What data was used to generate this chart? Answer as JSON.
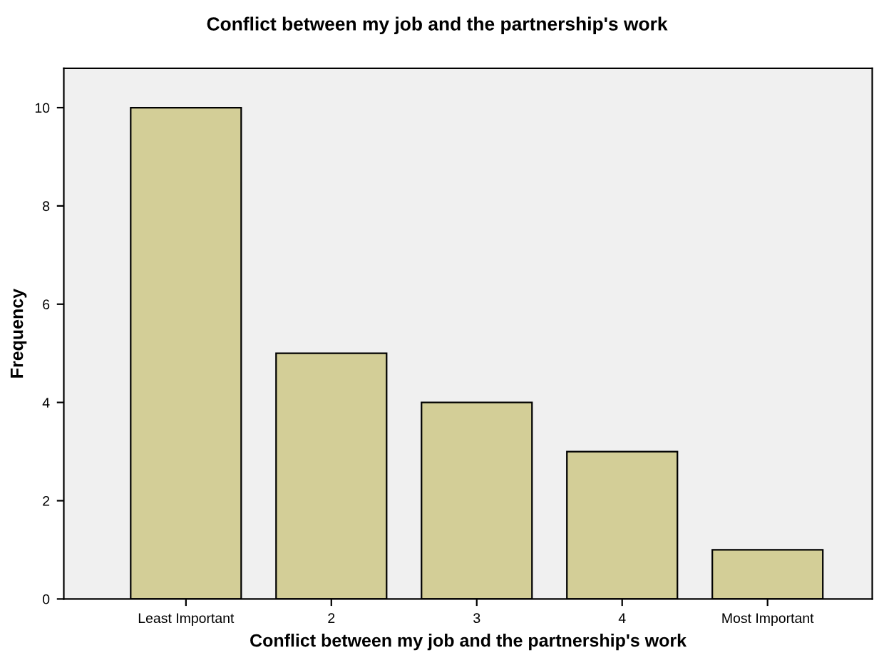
{
  "chart_data": {
    "type": "bar",
    "title": "Conflict between my job and the partnership's work",
    "xlabel": "Conflict between my job and the partnership's work",
    "ylabel": "Frequency",
    "categories": [
      "Least Important",
      "2",
      "3",
      "4",
      "Most Important"
    ],
    "values": [
      10,
      5,
      4,
      3,
      1
    ],
    "color": "#d3ce97",
    "ylim": [
      0,
      10.8
    ],
    "yticks": [
      0,
      2,
      4,
      6,
      8,
      10
    ],
    "grid": false,
    "legend": false
  }
}
